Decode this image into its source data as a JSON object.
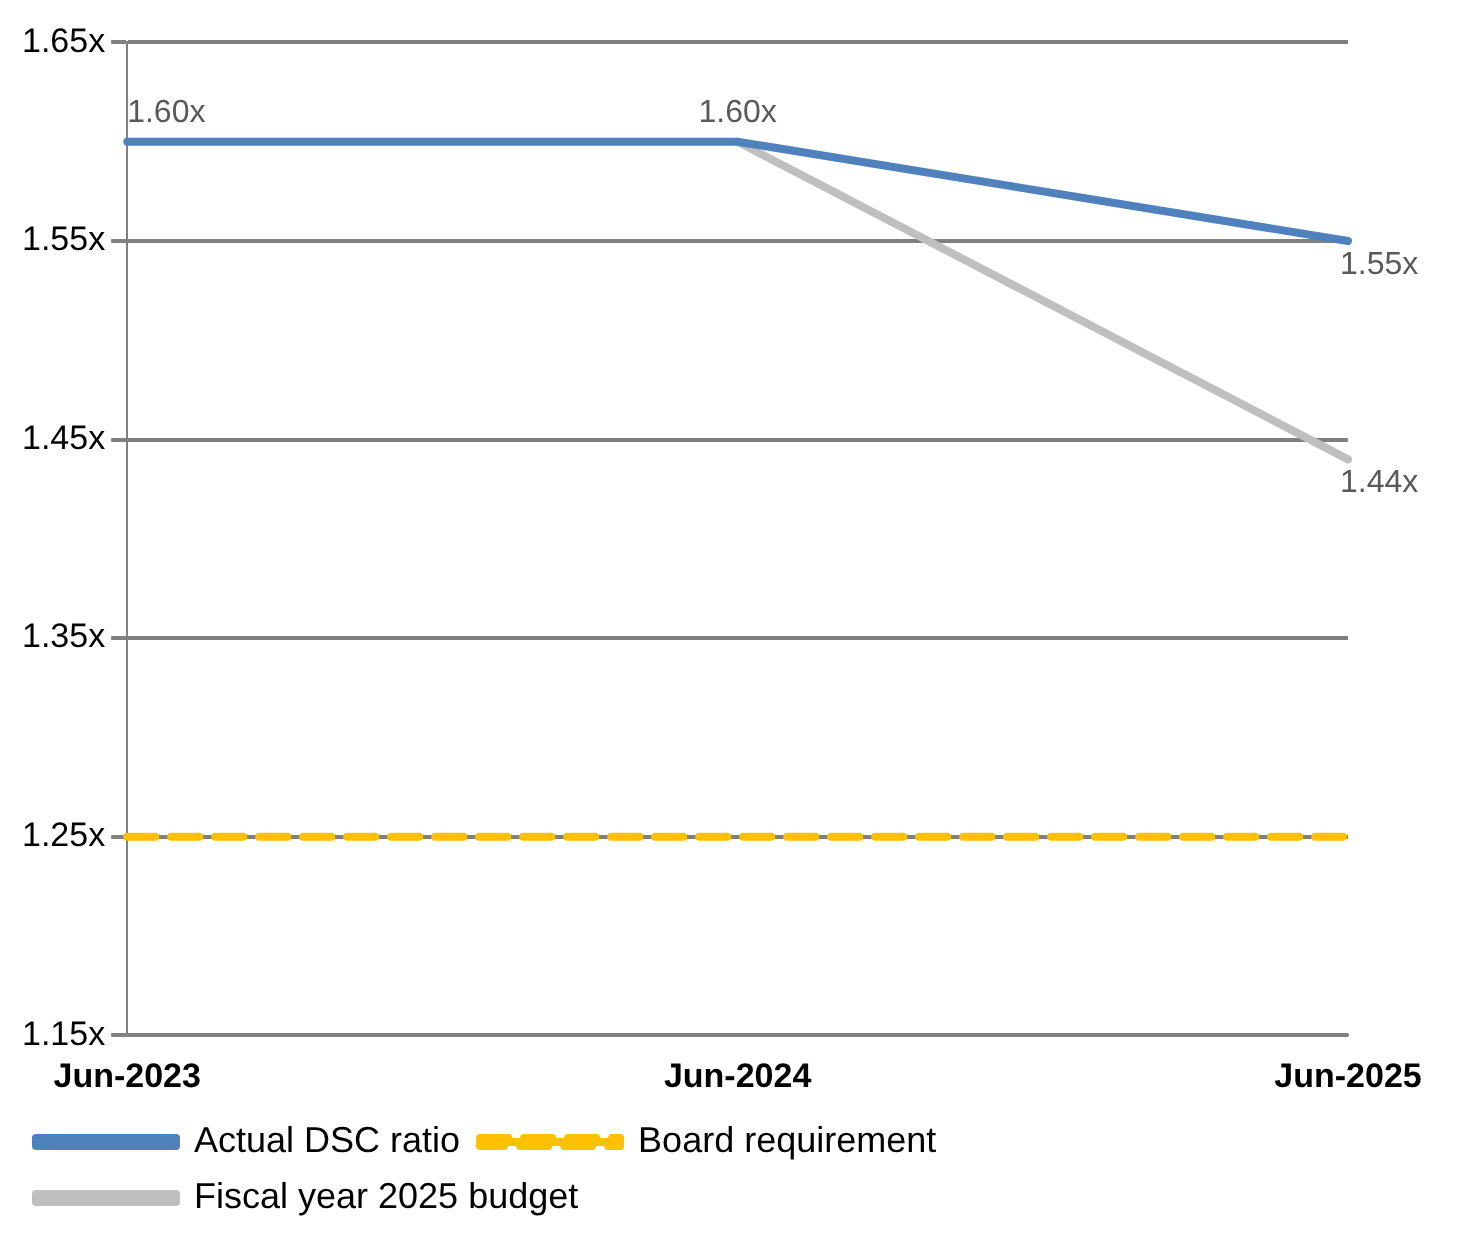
{
  "chart_data": {
    "type": "line",
    "categories": [
      "Jun-2023",
      "Jun-2024",
      "Jun-2025"
    ],
    "series": [
      {
        "name": "Actual DSC ratio",
        "color": "#4f81bd",
        "values": [
          1.6,
          1.6,
          1.55
        ],
        "value_labels": [
          "1.60x",
          "1.60x",
          "1.55x"
        ]
      },
      {
        "name": "Board requirement",
        "color": "#ffc000",
        "values": [
          1.25,
          1.25,
          1.25
        ],
        "line_style": "dashed"
      },
      {
        "name": "Fiscal year 2025 budget",
        "color": "#bfbfbf",
        "values": [
          null,
          1.6,
          1.44
        ],
        "value_labels": [
          null,
          null,
          "1.44x"
        ]
      }
    ],
    "ylim": [
      1.15,
      1.65
    ],
    "yticks": [
      {
        "value": 1.15,
        "label": "1.15x"
      },
      {
        "value": 1.25,
        "label": "1.25x"
      },
      {
        "value": 1.35,
        "label": "1.35x"
      },
      {
        "value": 1.45,
        "label": "1.45x"
      },
      {
        "value": 1.55,
        "label": "1.55x"
      },
      {
        "value": 1.65,
        "label": "1.65x"
      }
    ],
    "grid": "y",
    "legend": "bottom",
    "marker": "none",
    "line_style": "solid"
  }
}
